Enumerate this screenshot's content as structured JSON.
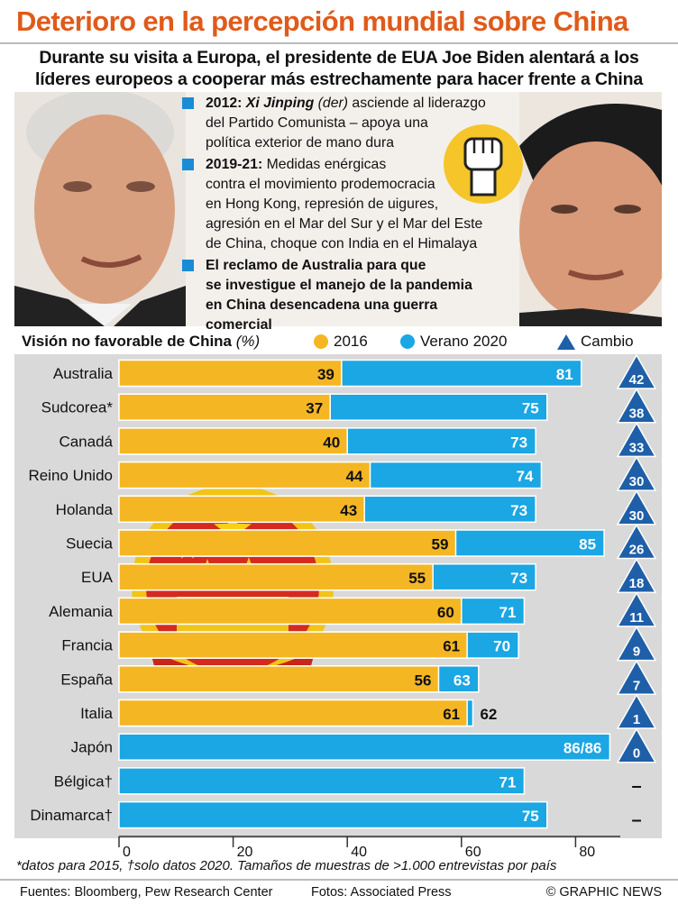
{
  "header": {
    "title": "Deterioro en la percepción mundial sobre China",
    "subtitle_line1": "Durante su visita a Europa, el presidente de EUA Joe Biden alentará a los",
    "subtitle_line2": "líderes europeos a cooperar más estrechamente para hacer frente a China"
  },
  "bullets": [
    {
      "lead": "2012:",
      "name": "Xi Jinping",
      "aside": "(der)",
      "text1": "asciende al liderazgo",
      "text2": "del Partido Comunista – apoya una",
      "text3": "política exterior de mano dura"
    },
    {
      "lead": "2019-21:",
      "text1": "Medidas enérgicas",
      "text2": "contra el movimiento prodemocracia",
      "text3": "en Hong Kong, represión de uigures,",
      "text4": "agresión en el Mar del Sur y el Mar del Este",
      "text5": "de China, choque con India en el Himalaya"
    },
    {
      "text1": "El reclamo de Australia para que",
      "text2": "se investigue el manejo de la pandemia",
      "text3": "en China desencadena una guerra comercial"
    }
  ],
  "legend": {
    "title": "Visión no favorable de China",
    "unit": "(%)",
    "series_2016": "2016",
    "series_2020": "Verano 2020",
    "change": "Cambio"
  },
  "colors": {
    "y2016": "#f5b623",
    "y2020": "#1ba6e4",
    "change": "#1e5fa8",
    "title": "#e05a1a"
  },
  "icons": [
    "fist-icon",
    "china-emblem-icon",
    "biden-photo",
    "xi-photo"
  ],
  "chart_data": {
    "type": "bar",
    "title": "Visión no favorable de China (%)",
    "categories": [
      "Australia",
      "Sudcorea*",
      "Canadá",
      "Reino Unido",
      "Holanda",
      "Suecia",
      "EUA",
      "Alemania",
      "Francia",
      "España",
      "Italia",
      "Japón",
      "Bélgica†",
      "Dinamarca†"
    ],
    "series": [
      {
        "name": "2016",
        "values": [
          39,
          37,
          40,
          44,
          43,
          59,
          55,
          60,
          61,
          56,
          61,
          86,
          null,
          null
        ]
      },
      {
        "name": "Verano 2020",
        "values": [
          81,
          75,
          73,
          74,
          73,
          85,
          73,
          71,
          70,
          63,
          62,
          86,
          71,
          75
        ]
      }
    ],
    "change": [
      42,
      38,
      33,
      30,
      30,
      26,
      18,
      11,
      9,
      7,
      1,
      0,
      null,
      null
    ],
    "value_labels_2020": [
      "81",
      "75",
      "73",
      "74",
      "73",
      "85",
      "73",
      "71",
      "70",
      "63",
      "62",
      "86/86",
      "71",
      "75"
    ],
    "change_missing_label": "–",
    "xlim": [
      0,
      88
    ],
    "xticks": [
      0,
      20,
      40,
      60,
      80
    ],
    "grid": false
  },
  "footer": {
    "footnote": "*datos para 2015, †solo datos 2020. Tamaños de muestras de >1.000 entrevistas por país",
    "sources": "Fuentes: Bloomberg, Pew Research Center",
    "photos": "Fotos: Associated Press",
    "credit": "© GRAPHIC NEWS"
  }
}
